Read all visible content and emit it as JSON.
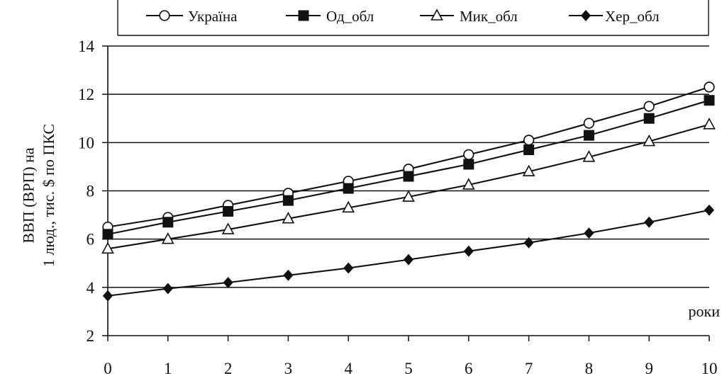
{
  "chart_data": {
    "type": "line",
    "ylabel": [
      "ВВП (ВРП) на",
      "1 люд., тис. $ по ПКС"
    ],
    "xlabel": "роки",
    "x": [
      0,
      1,
      2,
      3,
      4,
      5,
      6,
      7,
      8,
      9,
      10
    ],
    "xlim": [
      0,
      10
    ],
    "ylim": [
      2,
      14
    ],
    "yticks": [
      2,
      4,
      6,
      8,
      10,
      12,
      14
    ],
    "grid": true,
    "legend_position": "top",
    "series": [
      {
        "name": "Україна",
        "marker": "open-circle",
        "values": [
          6.5,
          6.9,
          7.4,
          7.9,
          8.4,
          8.9,
          9.5,
          10.1,
          10.8,
          11.5,
          12.3
        ]
      },
      {
        "name": "Од_обл",
        "marker": "filled-square",
        "values": [
          6.2,
          6.7,
          7.15,
          7.6,
          8.1,
          8.6,
          9.1,
          9.7,
          10.3,
          11.0,
          11.75
        ]
      },
      {
        "name": "Мик_обл",
        "marker": "open-triangle",
        "values": [
          5.6,
          6.0,
          6.4,
          6.85,
          7.3,
          7.75,
          8.25,
          8.8,
          9.4,
          10.05,
          10.75
        ]
      },
      {
        "name": "Хер_обл",
        "marker": "filled-diamond",
        "values": [
          3.65,
          3.95,
          4.2,
          4.5,
          4.8,
          5.15,
          5.5,
          5.85,
          6.25,
          6.7,
          7.2
        ]
      }
    ]
  }
}
